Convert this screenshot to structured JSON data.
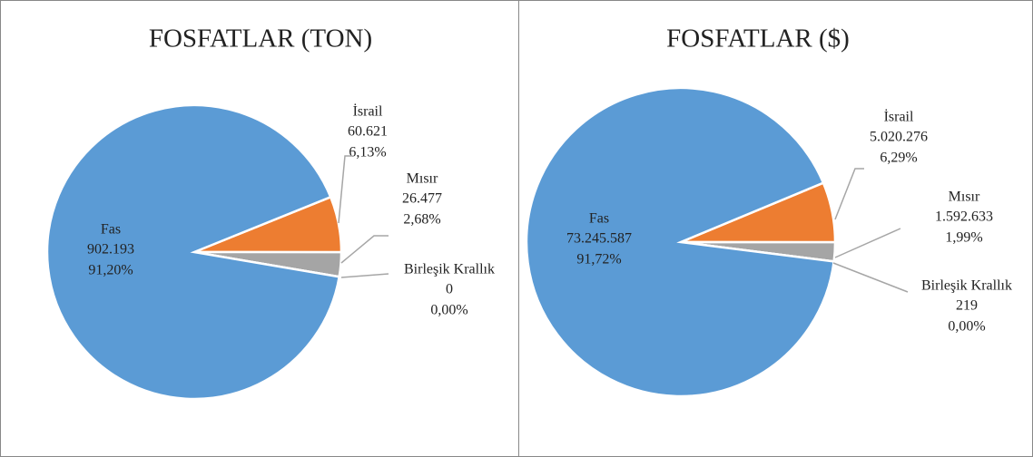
{
  "chart_data": [
    {
      "type": "pie",
      "title": "FOSFATLAR (TON)",
      "start_angle": 68,
      "categories": [
        "İsrail",
        "Mısır",
        "Birleşik Krallık",
        "Fas"
      ],
      "values": [
        60621,
        26477,
        0,
        902193
      ],
      "value_labels": [
        "60.621",
        "26.477",
        "0",
        "902.193"
      ],
      "percent_labels": [
        "6,13%",
        "2,68%",
        "0,00%",
        "91,20%"
      ],
      "colors": [
        "#ed7d31",
        "#a5a5a5",
        "#ffc000",
        "#5b9bd5"
      ]
    },
    {
      "type": "pie",
      "title": "FOSFATLAR ($)",
      "start_angle": 67.4,
      "categories": [
        "İsrail",
        "Mısır",
        "Birleşik Krallık",
        "Fas"
      ],
      "values": [
        5020276,
        1592633,
        219,
        73245587
      ],
      "value_labels": [
        "5.020.276",
        "1.592.633",
        "219",
        "73.245.587"
      ],
      "percent_labels": [
        "6,29%",
        "1,99%",
        "0,00%",
        "91,72%"
      ],
      "colors": [
        "#ed7d31",
        "#a5a5a5",
        "#ffc000",
        "#5b9bd5"
      ]
    }
  ]
}
